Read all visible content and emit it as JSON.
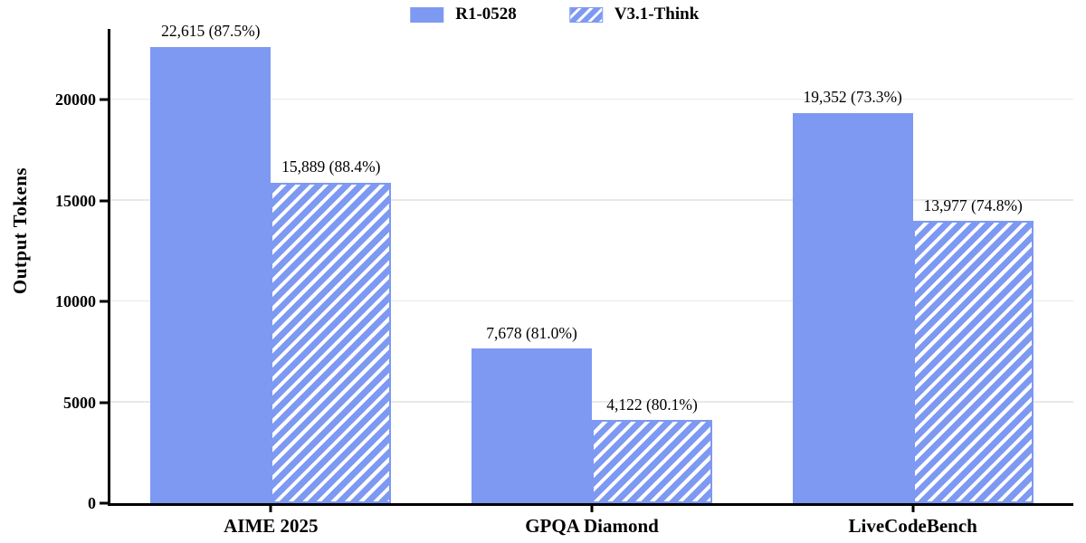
{
  "chart_data": {
    "type": "bar",
    "title": "",
    "ylabel": "Output Tokens",
    "xlabel": "",
    "categories": [
      "AIME 2025",
      "GPQA Diamond",
      "LiveCodeBench"
    ],
    "series": [
      {
        "name": "R1-0528",
        "style": "solid",
        "values": [
          22615,
          7678,
          19352
        ],
        "bar_labels": [
          "22,615 (87.5%)",
          "7,678 (81.0%)",
          "19,352 (73.3%)"
        ]
      },
      {
        "name": "V3.1-Think",
        "style": "hatched",
        "values": [
          15889,
          4122,
          13977
        ],
        "bar_labels": [
          "15,889 (88.4%)",
          "4,122 (80.1%)",
          "13,977 (74.8%)"
        ]
      }
    ],
    "ylim": [
      0,
      23500
    ],
    "yticks": [
      0,
      5000,
      10000,
      15000,
      20000
    ],
    "ytick_labels": [
      "0",
      "5000",
      "10000",
      "15000",
      "20000"
    ],
    "grid": true,
    "legend_position": "top-center",
    "colors": {
      "bar": "#7e99f2",
      "hatch_stripe": "#ffffff",
      "axis": "#000000",
      "grid": "#e9e9e9",
      "text": "#000000"
    }
  }
}
